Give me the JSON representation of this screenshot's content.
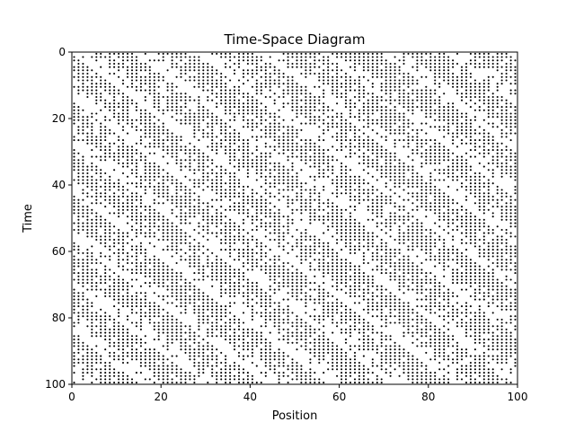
{
  "chart_data": {
    "type": "scatter",
    "title": "Time-Space Diagram",
    "xlabel": "Position",
    "ylabel": "Time",
    "xlim": [
      0,
      100
    ],
    "ylim": [
      100,
      0
    ],
    "y_inverted": true,
    "x_ticks": [
      "0",
      "20",
      "40",
      "60",
      "80",
      "100"
    ],
    "y_ticks": [
      "0",
      "20",
      "40",
      "60",
      "80",
      "100"
    ],
    "grid": false,
    "marker_color": "#000000",
    "description_of_points": "Occupied cells of a 100-position x 100-step traffic cellular automaton; dense black dots with diagonal white bands (gaps) moving toward increasing position over time.",
    "density": 0.55,
    "band_slope_positions_per_step": 1,
    "band_period_positions": 14
  }
}
